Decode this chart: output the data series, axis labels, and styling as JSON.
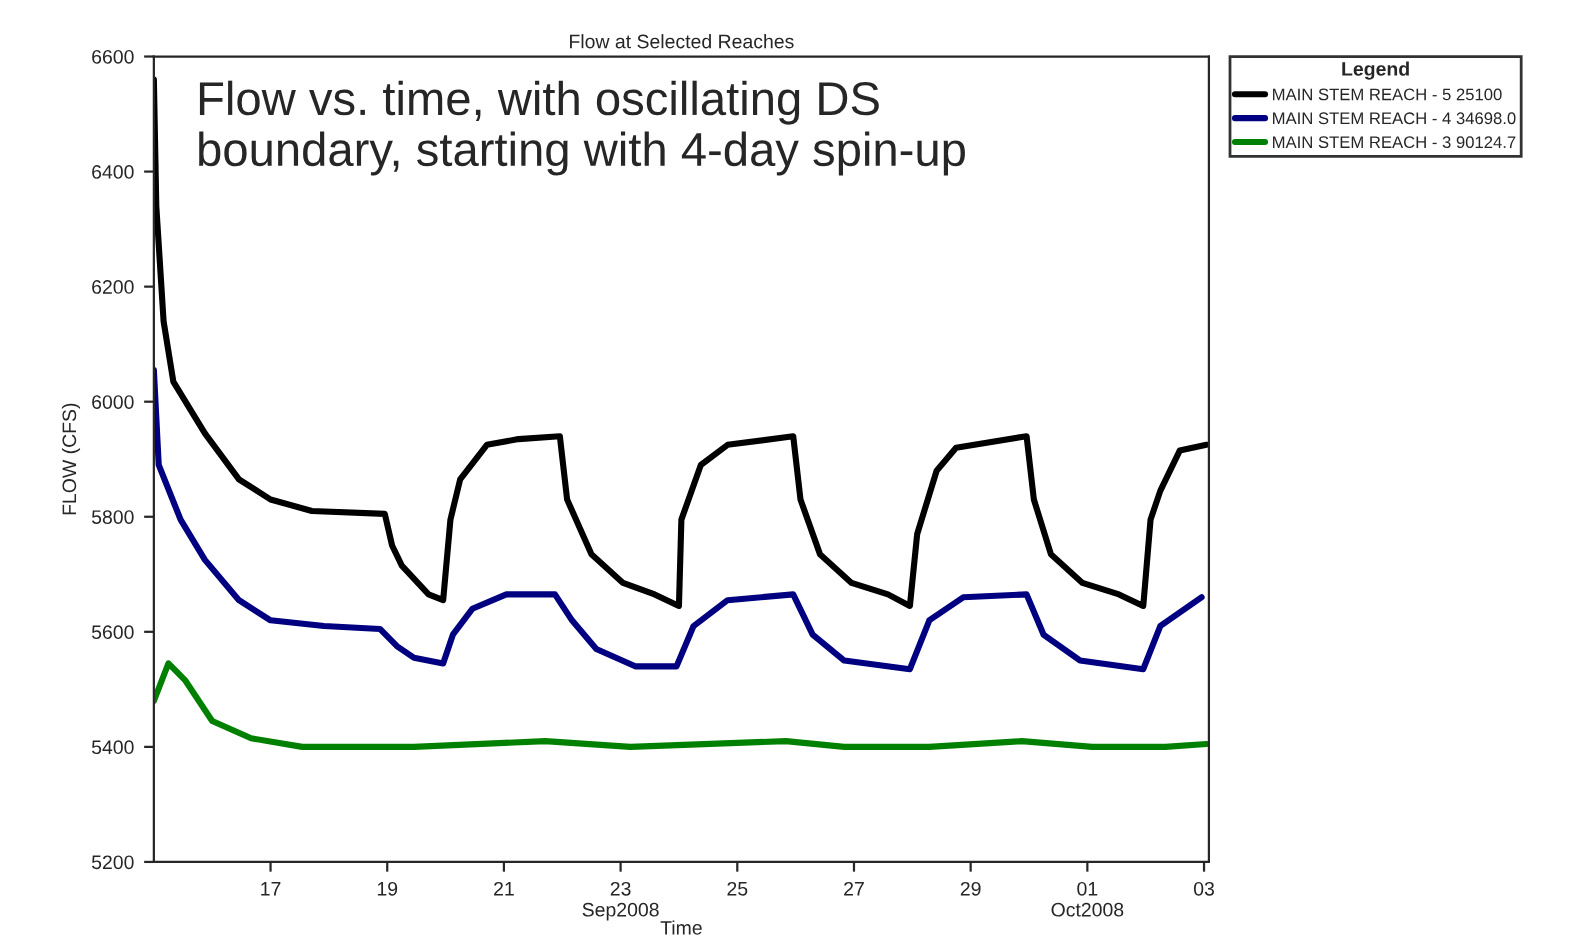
{
  "chart_data": {
    "type": "line",
    "title": "Flow at Selected Reaches",
    "xlabel": "Time",
    "ylabel": "FLOW (CFS)",
    "legend_title": "Legend",
    "annotations": [
      "Flow vs. time, with oscillating DS\nboundary, starting with 4-day spin-up"
    ],
    "xlim": [
      "2008-09-15T00:00",
      "2008-10-03T02:00"
    ],
    "xticks": [
      {
        "value": "2008-09-17",
        "label": "17"
      },
      {
        "value": "2008-09-19",
        "label": "19"
      },
      {
        "value": "2008-09-21",
        "label": "21"
      },
      {
        "value": "2008-09-23",
        "label": "23\nSep2008"
      },
      {
        "value": "2008-09-25",
        "label": "25"
      },
      {
        "value": "2008-09-27",
        "label": "27"
      },
      {
        "value": "2008-09-29",
        "label": "29"
      },
      {
        "value": "2008-10-01",
        "label": "01\nOct2008"
      },
      {
        "value": "2008-10-03",
        "label": "03"
      }
    ],
    "ylim": [
      5200,
      6600
    ],
    "yticks": [
      5200,
      5400,
      5600,
      5800,
      6000,
      6200,
      6400,
      6600
    ],
    "grid": false,
    "legend": "top right",
    "marker": "none",
    "line_style": "solid",
    "series": [
      {
        "name": "MAIN STEM REACH - 5 25100",
        "color": "#000000",
        "x": [
          "2008-09-15T00:00",
          "2008-09-15T01:00",
          "2008-09-15T04:00",
          "2008-09-15T08:00",
          "2008-09-15T21:00",
          "2008-09-16T11:00",
          "2008-09-17T00:00",
          "2008-09-17T17:00",
          "2008-09-18T23:00",
          "2008-09-19T02:00",
          "2008-09-19T06:00",
          "2008-09-19T17:00",
          "2008-09-19T23:00",
          "2008-09-20T02:00",
          "2008-09-20T06:00",
          "2008-09-20T17:00",
          "2008-09-21T06:00",
          "2008-09-21T23:00",
          "2008-09-22T02:00",
          "2008-09-22T12:00",
          "2008-09-23T01:00",
          "2008-09-23T14:00",
          "2008-09-24T00:00",
          "2008-09-24T01:00",
          "2008-09-24T09:00",
          "2008-09-24T20:00",
          "2008-09-25T23:00",
          "2008-09-26T02:00",
          "2008-09-26T10:00",
          "2008-09-26T23:00",
          "2008-09-27T14:00",
          "2008-09-27T23:00",
          "2008-09-28T02:00",
          "2008-09-28T10:00",
          "2008-09-28T18:00",
          "2008-09-29T23:00",
          "2008-09-30T02:00",
          "2008-09-30T09:00",
          "2008-09-30T22:00",
          "2008-10-01T13:00",
          "2008-10-01T23:00",
          "2008-10-02T02:00",
          "2008-10-02T06:00",
          "2008-10-02T14:00",
          "2008-10-03T01:00"
        ],
        "values": [
          6560,
          6340,
          6140,
          6035,
          5945,
          5865,
          5830,
          5810,
          5805,
          5750,
          5715,
          5665,
          5655,
          5795,
          5865,
          5925,
          5935,
          5940,
          5830,
          5735,
          5685,
          5665,
          5645,
          5795,
          5890,
          5925,
          5940,
          5830,
          5735,
          5685,
          5665,
          5645,
          5770,
          5880,
          5920,
          5940,
          5830,
          5735,
          5685,
          5665,
          5645,
          5795,
          5845,
          5915,
          5925
        ]
      },
      {
        "name": "MAIN STEM REACH - 4 34698.0",
        "color": "#000080",
        "x": [
          "2008-09-15T00:00",
          "2008-09-15T02:00",
          "2008-09-15T11:00",
          "2008-09-15T21:00",
          "2008-09-16T11:00",
          "2008-09-17T00:00",
          "2008-09-17T22:00",
          "2008-09-18T21:00",
          "2008-09-19T04:00",
          "2008-09-19T11:00",
          "2008-09-19T23:00",
          "2008-09-20T03:00",
          "2008-09-20T11:00",
          "2008-09-21T01:00",
          "2008-09-21T21:00",
          "2008-09-22T04:00",
          "2008-09-22T14:00",
          "2008-09-23T06:00",
          "2008-09-23T23:00",
          "2008-09-24T06:00",
          "2008-09-24T20:00",
          "2008-09-25T23:00",
          "2008-09-26T07:00",
          "2008-09-26T20:00",
          "2008-09-27T23:00",
          "2008-09-28T07:00",
          "2008-09-28T21:00",
          "2008-09-29T23:00",
          "2008-09-30T06:00",
          "2008-09-30T21:00",
          "2008-10-01T23:00",
          "2008-10-02T06:00",
          "2008-10-02T23:00"
        ],
        "values": [
          6055,
          5890,
          5795,
          5725,
          5655,
          5620,
          5610,
          5605,
          5575,
          5555,
          5545,
          5595,
          5640,
          5665,
          5665,
          5620,
          5570,
          5540,
          5540,
          5610,
          5655,
          5665,
          5595,
          5550,
          5535,
          5620,
          5660,
          5665,
          5595,
          5550,
          5535,
          5610,
          5660
        ]
      },
      {
        "name": "MAIN STEM REACH - 3 90124.7",
        "color": "#008000",
        "x": [
          "2008-09-15T00:00",
          "2008-09-15T06:00",
          "2008-09-15T13:00",
          "2008-09-16T00:00",
          "2008-09-16T16:00",
          "2008-09-17T13:00",
          "2008-09-19T11:00",
          "2008-09-21T17:00",
          "2008-09-23T04:00",
          "2008-09-25T20:00",
          "2008-09-26T20:00",
          "2008-09-28T07:00",
          "2008-09-29T21:00",
          "2008-10-01T02:00",
          "2008-10-02T08:00",
          "2008-10-03T01:00"
        ],
        "values": [
          5480,
          5545,
          5515,
          5445,
          5415,
          5400,
          5400,
          5410,
          5400,
          5410,
          5400,
          5400,
          5410,
          5400,
          5400,
          5405
        ]
      }
    ]
  }
}
